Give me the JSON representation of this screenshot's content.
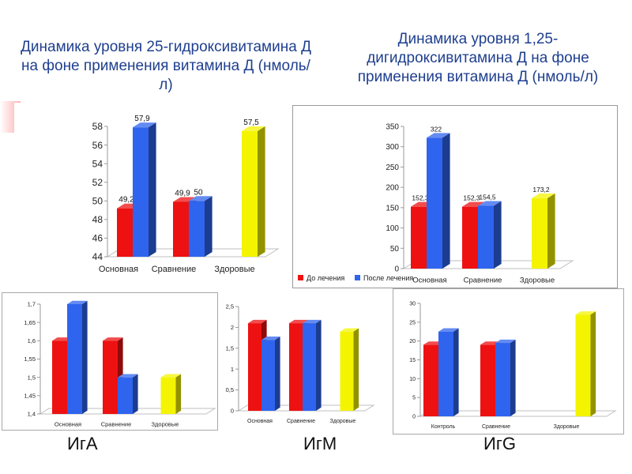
{
  "titles": {
    "left": "Динамика уровня 25-гидроксивитамина Д на фоне применения витамина Д (нмоль/л)",
    "right": "Динамика уровня 1,25-дигидроксивитамина Д на фоне применения витамина Д (нмоль/л)"
  },
  "labels": {
    "iga": "ИгА",
    "igm": "ИгМ",
    "igg": "ИгG"
  },
  "colors": {
    "red": "#ee1111",
    "blue": "#2f64ee",
    "yellow": "#f4f400"
  },
  "chart_data": [
    {
      "type": "bar",
      "categories": [
        "Основная",
        "Сравнение",
        "Здоровые"
      ],
      "ylim": [
        44,
        58
      ],
      "yticks": [
        "44",
        "46",
        "48",
        "50",
        "52",
        "54",
        "56",
        "58"
      ],
      "series": [
        {
          "color": "red",
          "values": [
            49.2,
            49.9,
            null
          ],
          "labels": [
            "49,2",
            "49,9",
            null
          ]
        },
        {
          "color": "blue",
          "values": [
            57.9,
            50,
            null
          ],
          "labels": [
            "57,9",
            "50",
            null
          ]
        },
        {
          "color": "yellow",
          "values": [
            null,
            null,
            57.5
          ],
          "labels": [
            null,
            null,
            "57,5"
          ]
        }
      ]
    },
    {
      "type": "bar",
      "categories": [
        "Основная",
        "Сравнение",
        "Здоровые"
      ],
      "ylim": [
        0,
        350
      ],
      "yticks": [
        "0",
        "50",
        "100",
        "150",
        "200",
        "250",
        "300",
        "350"
      ],
      "legend": [
        "До лечения",
        "После лечения"
      ],
      "series": [
        {
          "name": "До лечения",
          "color": "red",
          "values": [
            152.3,
            152.3,
            null
          ],
          "labels": [
            "152,3",
            "152,3",
            null
          ]
        },
        {
          "name": "После лечения",
          "color": "blue",
          "values": [
            322,
            154.5,
            null
          ],
          "labels": [
            "322",
            "154,5",
            null
          ]
        },
        {
          "color": "yellow",
          "values": [
            null,
            null,
            173.2
          ],
          "labels": [
            null,
            null,
            "173,2"
          ]
        }
      ]
    },
    {
      "type": "bar",
      "categories": [
        "Основная",
        "Сравнение",
        "Здоровые"
      ],
      "ylim": [
        1.4,
        1.7
      ],
      "yticks": [
        "1,4",
        "1,45",
        "1,5",
        "1,55",
        "1,6",
        "1,65",
        "1,7"
      ],
      "series": [
        {
          "color": "red",
          "values": [
            1.6,
            1.6,
            null
          ]
        },
        {
          "color": "blue",
          "values": [
            1.7,
            1.5,
            null
          ]
        },
        {
          "color": "yellow",
          "values": [
            null,
            null,
            1.5
          ]
        }
      ]
    },
    {
      "type": "bar",
      "categories": [
        "Основная",
        "Сравнение",
        "Здоровые"
      ],
      "ylim": [
        0,
        2.5
      ],
      "yticks": [
        "0",
        "0,5",
        "1",
        "1,5",
        "2",
        "2,5"
      ],
      "series": [
        {
          "color": "red",
          "values": [
            2.1,
            2.1,
            null
          ]
        },
        {
          "color": "blue",
          "values": [
            1.7,
            2.1,
            null
          ]
        },
        {
          "color": "yellow",
          "values": [
            null,
            null,
            1.9
          ]
        }
      ]
    },
    {
      "type": "bar",
      "categories": [
        "Контроль",
        "Сравнение",
        "Здоровые"
      ],
      "ylim": [
        0,
        30
      ],
      "yticks": [
        "0",
        "5",
        "10",
        "15",
        "20",
        "25",
        "30"
      ],
      "series": [
        {
          "color": "red",
          "values": [
            19,
            19,
            null
          ]
        },
        {
          "color": "blue",
          "values": [
            22.5,
            19.5,
            null
          ]
        },
        {
          "color": "yellow",
          "values": [
            null,
            null,
            27
          ]
        }
      ]
    }
  ]
}
